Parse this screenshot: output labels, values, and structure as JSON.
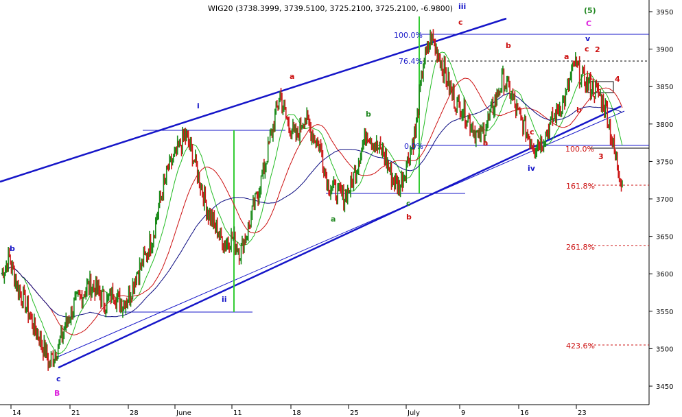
{
  "chart_data": {
    "type": "line",
    "title": "WIG20 (3738.3999, 3739.5100, 3725.2100, 3725.2100, -6.9800)",
    "xlabel": "",
    "ylabel": "",
    "ylim": [
      3425,
      3975
    ],
    "x_tick_labels": [
      "14",
      "21",
      "28",
      "June",
      "11",
      "18",
      "25",
      "July",
      "9",
      "16",
      "23"
    ],
    "y_ticks": [
      3450,
      3500,
      3550,
      3600,
      3650,
      3700,
      3750,
      3800,
      3850,
      3900,
      3950
    ],
    "grid": false,
    "colors": {
      "price_up": "#1a8a1a",
      "price_down": "#cc1a1a",
      "trend": "#1515c8",
      "ma_fast": "#22bb22",
      "ma_mid": "#cc1010",
      "ma_slow": "#0a0a80",
      "vline": "#33cc33",
      "fib_blue": "#1515c8",
      "fib_red": "#cc1010",
      "wave_magenta": "#dd22dd",
      "wave_green": "#228822"
    },
    "series": [
      {
        "values": [
          3600,
          3620,
          3585,
          3560,
          3530,
          3510,
          3480,
          3500,
          3530,
          3555,
          3570,
          3585,
          3580,
          3560,
          3575,
          3560,
          3570,
          3600,
          3620,
          3650,
          3700,
          3740,
          3760,
          3785,
          3760,
          3720,
          3680,
          3660,
          3640,
          3650,
          3630,
          3660,
          3700,
          3740,
          3790,
          3840,
          3800,
          3780,
          3810,
          3790,
          3770,
          3720,
          3710,
          3700,
          3720,
          3760,
          3790,
          3770,
          3760,
          3730,
          3715,
          3750,
          3790,
          3880,
          3915,
          3890,
          3860,
          3830,
          3820,
          3800,
          3780,
          3800,
          3830,
          3860,
          3840,
          3810,
          3790,
          3770,
          3780,
          3800,
          3820,
          3840,
          3880,
          3860,
          3850,
          3840,
          3820,
          3760,
          3720
        ]
      }
    ]
  },
  "annotations": {
    "wave_labels": [
      {
        "text": "b",
        "color": "#1515c8"
      },
      {
        "text": "c",
        "color": "#1515c8"
      },
      {
        "text": "B",
        "color": "#dd22dd"
      },
      {
        "text": "i",
        "color": "#1515c8"
      },
      {
        "text": "ii",
        "color": "#1515c8"
      },
      {
        "text": "a",
        "color": "#cc1010"
      },
      {
        "text": "b",
        "color": "#228822"
      },
      {
        "text": "a",
        "color": "#228822"
      },
      {
        "text": "c",
        "color": "#228822"
      },
      {
        "text": "b",
        "color": "#cc1010"
      },
      {
        "text": "iii",
        "color": "#1515c8"
      },
      {
        "text": "c",
        "color": "#cc1010"
      },
      {
        "text": "b",
        "color": "#cc1010"
      },
      {
        "text": "a",
        "color": "#cc1010"
      },
      {
        "text": "c",
        "color": "#cc1010"
      },
      {
        "text": "iv",
        "color": "#1515c8"
      },
      {
        "text": "a",
        "color": "#cc1010"
      },
      {
        "text": "b",
        "color": "#cc1010"
      },
      {
        "text": "(5)",
        "color": "#228822"
      },
      {
        "text": "C",
        "color": "#dd22dd"
      },
      {
        "text": "v",
        "color": "#1515c8"
      },
      {
        "text": "c",
        "color": "#cc1010"
      },
      {
        "text": "2",
        "color": "#cc1010"
      },
      {
        "text": "1",
        "color": "#cc1010"
      },
      {
        "text": "4",
        "color": "#cc1010"
      },
      {
        "text": "3",
        "color": "#cc1010"
      }
    ],
    "fib_labels": [
      {
        "text": "100.0%",
        "color": "#1515c8"
      },
      {
        "text": "76.4%",
        "color": "#1515c8"
      },
      {
        "text": "0.0%",
        "color": "#1515c8"
      },
      {
        "text": "100.0%",
        "color": "#cc1010"
      },
      {
        "text": "161.8%",
        "color": "#cc1010"
      },
      {
        "text": "261.8%",
        "color": "#cc1010"
      },
      {
        "text": "423.6%",
        "color": "#cc1010"
      }
    ]
  }
}
